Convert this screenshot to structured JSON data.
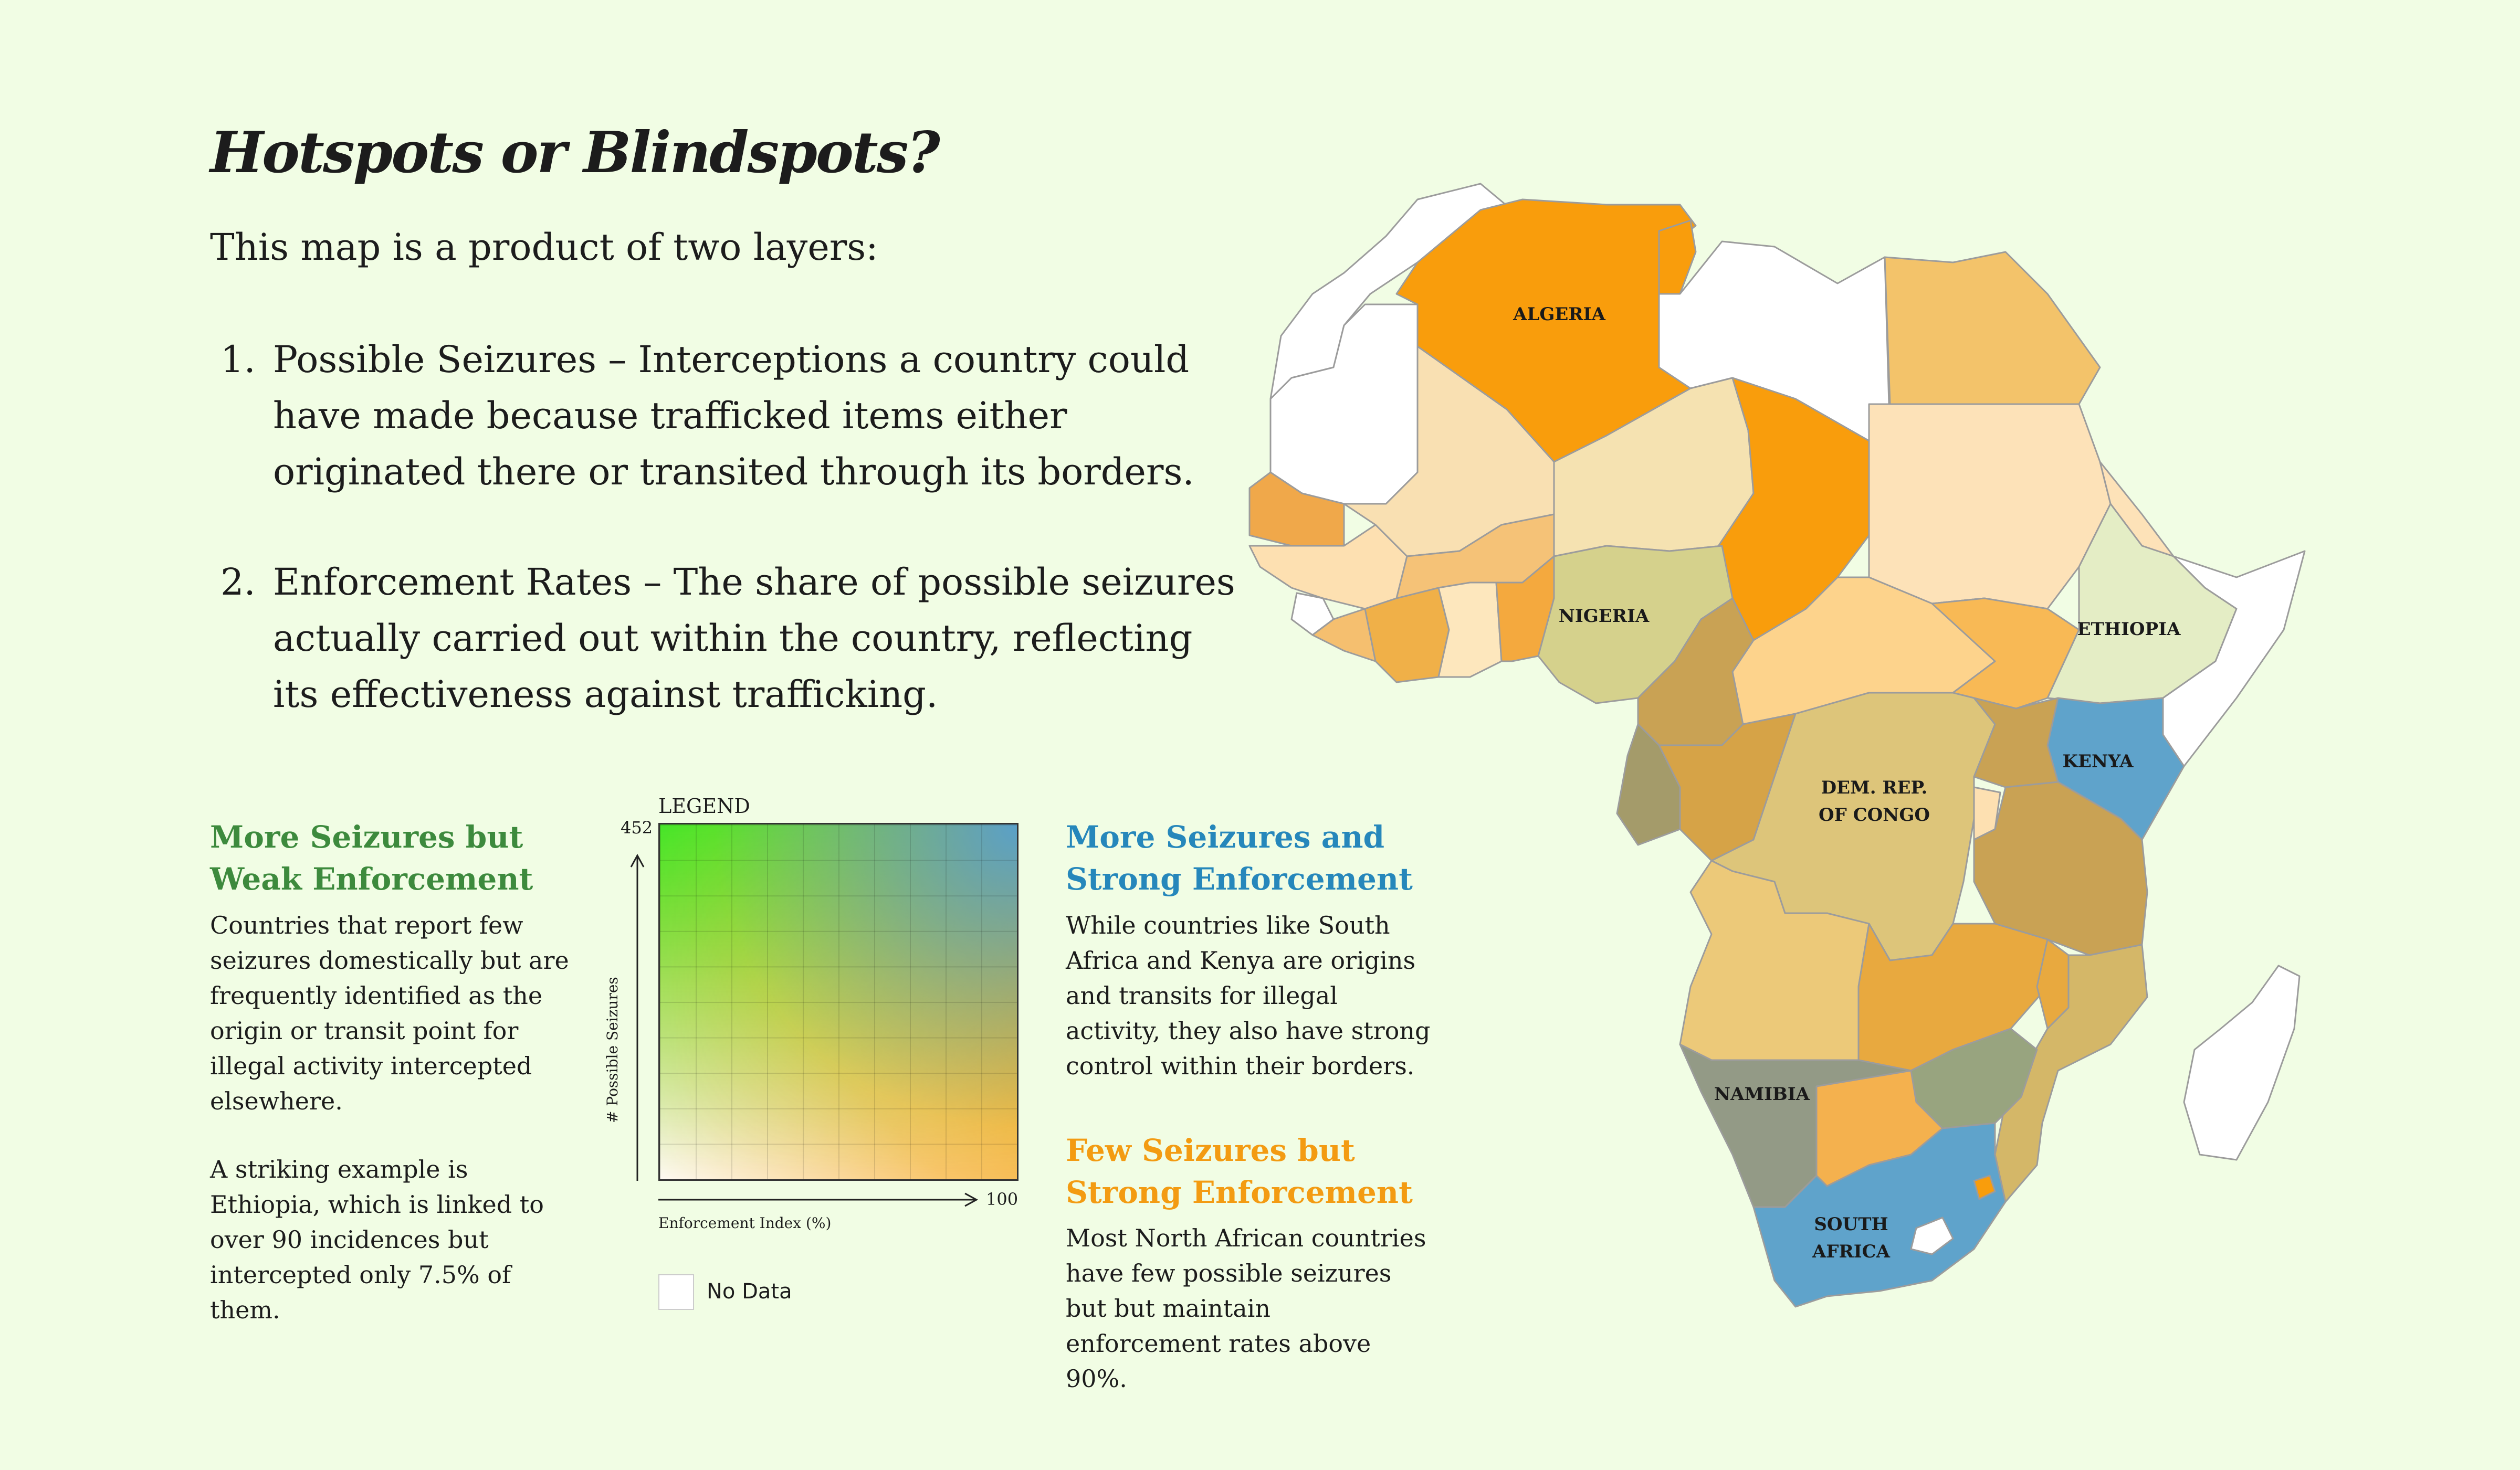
{
  "title": "Hotspots or Blindspots?",
  "intro": "This map is a product of two layers:",
  "layers": [
    {
      "num": "1.",
      "text": "Possible Seizures – Interceptions a country could have made because trafficked items either originated there or transited through its borders."
    },
    {
      "num": "2.",
      "text": "Enforcement Rates – The share of possible seizures actually carried out within the country, reflecting its effectiveness against trafficking."
    }
  ],
  "quadrants": {
    "green": {
      "heading": "More Seizures but Weak Enforcement",
      "body": "Countries that report few seizures domestically but are frequently identified as the origin or transit point for illegal activity intercepted elsewhere.",
      "example": "A striking example is Ethiopia, which is linked to over 90 incidences but intercepted only 7.5% of them."
    },
    "blue": {
      "heading": "More Seizures and Strong Enforcement",
      "body": "While countries like South Africa and Kenya are origins and transits for illegal activity, they also have strong control within their borders."
    },
    "orange": {
      "heading": "Few Seizures but Strong Enforcement",
      "body": "Most North African countries have few possible seizures but but maintain enforcement rates above 90%."
    }
  },
  "legend": {
    "title": "LEGEND",
    "y_max": "452",
    "x_max": "100",
    "x_label": "Enforcement Index (%)",
    "y_label": "# Possible Seizures",
    "no_data": "No Data"
  },
  "colors": {
    "background": "#f1fde4",
    "green_heading": "#3d8a3d",
    "blue_heading": "#2687bb",
    "orange_heading": "#f39b12"
  },
  "map": {
    "labels": {
      "algeria": "ALGERIA",
      "nigeria": "NIGERIA",
      "ethiopia": "ETHIOPIA",
      "kenya": "KENYA",
      "drc_line1": "DEM. REP.",
      "drc_line2": "OF CONGO",
      "namibia": "NAMIBIA",
      "south_africa_line1": "SOUTH",
      "south_africa_line2": "AFRICA"
    }
  }
}
